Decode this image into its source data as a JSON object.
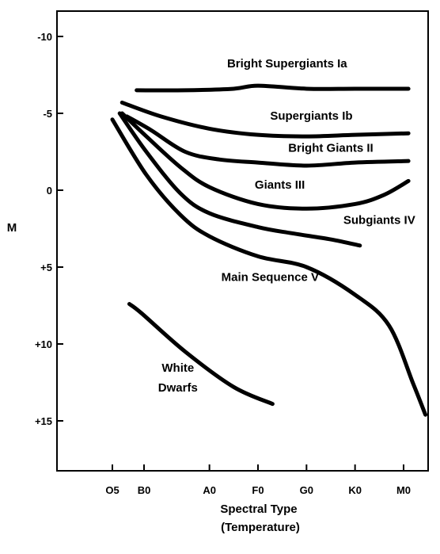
{
  "chart_data": {
    "type": "line",
    "xlabel": "Spectral Type",
    "xlabel_sub": "(Temperature)",
    "ylabel": "M",
    "x_categories": [
      "O5",
      "B0",
      "A0",
      "F0",
      "G0",
      "K0",
      "M0"
    ],
    "y_ticks": [
      {
        "value": -10,
        "label": "-10"
      },
      {
        "value": -5,
        "label": "-5"
      },
      {
        "value": 0,
        "label": "0"
      },
      {
        "value": 5,
        "label": "+5"
      },
      {
        "value": 10,
        "label": "+10"
      },
      {
        "value": 15,
        "label": "+15"
      }
    ],
    "ylim": [
      -11.5,
      18
    ],
    "y_inverted": true,
    "grid": false,
    "series": [
      {
        "name": "Bright Supergiants Ia",
        "points": [
          [
            0.5,
            -6.5
          ],
          [
            1.5,
            -6.5
          ],
          [
            2.5,
            -6.6
          ],
          [
            3,
            -6.8
          ],
          [
            4,
            -6.6
          ],
          [
            5,
            -6.6
          ],
          [
            6.1,
            -6.6
          ]
        ]
      },
      {
        "name": "Supergiants Ib",
        "points": [
          [
            0.2,
            -5.7
          ],
          [
            1,
            -4.8
          ],
          [
            2,
            -4.0
          ],
          [
            3,
            -3.6
          ],
          [
            4,
            -3.5
          ],
          [
            5,
            -3.6
          ],
          [
            6.1,
            -3.7
          ]
        ]
      },
      {
        "name": "Bright Giants II",
        "points": [
          [
            0.3,
            -4.8
          ],
          [
            0.8,
            -3.9
          ],
          [
            1.5,
            -2.5
          ],
          [
            2.2,
            -2.0
          ],
          [
            3,
            -1.8
          ],
          [
            4,
            -1.6
          ],
          [
            5,
            -1.8
          ],
          [
            6.1,
            -1.9
          ]
        ]
      },
      {
        "name": "Giants III",
        "points": [
          [
            0.2,
            -5.0
          ],
          [
            0.7,
            -3.5
          ],
          [
            1.4,
            -1.5
          ],
          [
            2,
            -0.2
          ],
          [
            3,
            0.9
          ],
          [
            4,
            1.2
          ],
          [
            5,
            0.9
          ],
          [
            5.6,
            0.3
          ],
          [
            6.1,
            -0.6
          ]
        ]
      },
      {
        "name": "Subgiants IV",
        "points": [
          [
            0.15,
            -5.0
          ],
          [
            0.7,
            -2.5
          ],
          [
            1.4,
            0.2
          ],
          [
            2,
            1.5
          ],
          [
            3,
            2.4
          ],
          [
            3.7,
            2.8
          ],
          [
            4.5,
            3.2
          ],
          [
            5.1,
            3.6
          ]
        ]
      },
      {
        "name": "Main Sequence V",
        "points": [
          [
            0,
            -4.6
          ],
          [
            0.7,
            -1.0
          ],
          [
            1.4,
            1.6
          ],
          [
            2,
            3.0
          ],
          [
            3,
            4.3
          ],
          [
            4,
            5.0
          ],
          [
            5,
            6.8
          ],
          [
            5.7,
            8.8
          ],
          [
            6.2,
            12.6
          ],
          [
            6.45,
            14.6
          ]
        ]
      },
      {
        "name": "White Dwarfs",
        "points": [
          [
            0.35,
            7.4
          ],
          [
            0.6,
            8.0
          ],
          [
            1.5,
            10.5
          ],
          [
            2.5,
            12.8
          ],
          [
            3.3,
            13.9
          ]
        ]
      }
    ],
    "series_labels": [
      {
        "text": "Bright Supergiants Ia",
        "x": 3.6,
        "y": -8.0
      },
      {
        "text": "Supergiants Ib",
        "x": 4.1,
        "y": -4.6
      },
      {
        "text": "Bright Giants II",
        "x": 4.5,
        "y": -2.5
      },
      {
        "text": "Giants III",
        "x": 3.45,
        "y": -0.1
      },
      {
        "text": "Subgiants IV",
        "x": 5.5,
        "y": 2.2
      },
      {
        "text": "Main Sequence V",
        "x": 3.25,
        "y": 5.9
      },
      {
        "text": "White",
        "x": 1.35,
        "y": 11.8
      },
      {
        "text": "Dwarfs",
        "x": 1.35,
        "y": 13.1
      }
    ]
  }
}
